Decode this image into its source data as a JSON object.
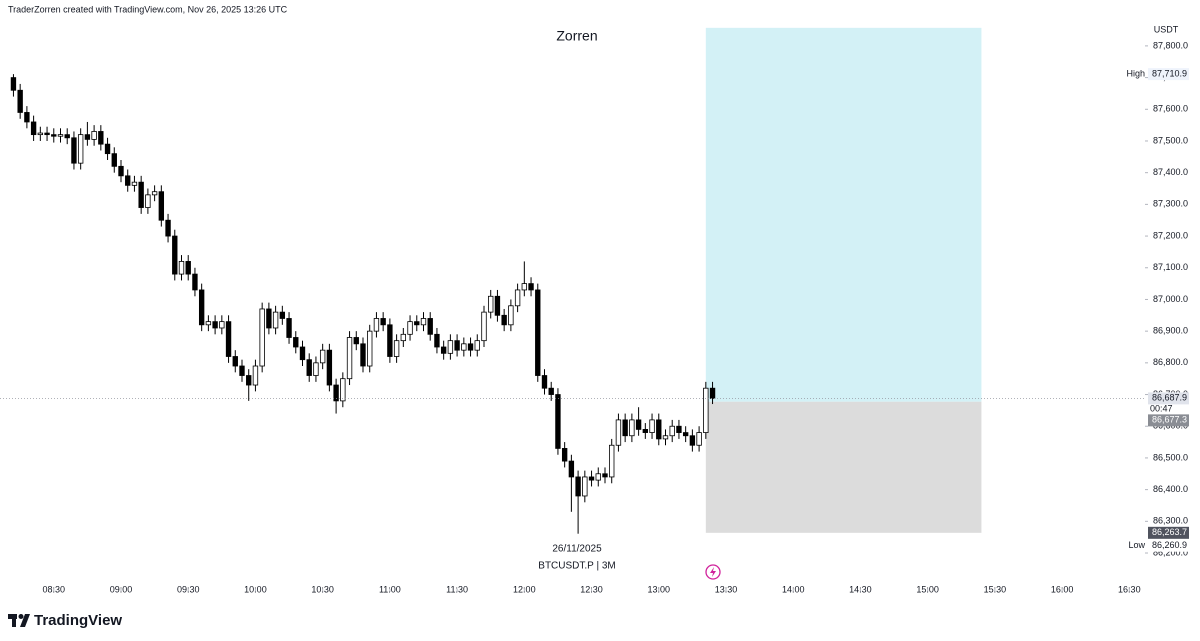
{
  "chart_data": {
    "type": "candlestick",
    "header": "TraderZorren created with TradingView.com, Nov 26, 2025 13:26 UTC",
    "title": "Zorren",
    "date": "26/11/2025",
    "symbol": "BTCUSDT.P | 3M",
    "unit": "USDT",
    "brand": "TradingView",
    "up_color": "#ffffff",
    "down_color": "#000000",
    "grid": false,
    "xlim": [
      486,
      997
    ],
    "ylim": [
      86077,
      87888
    ],
    "xticks": [
      {
        "value": 510,
        "label": "08:30"
      },
      {
        "value": 540,
        "label": "09:00"
      },
      {
        "value": 570,
        "label": "09:30"
      },
      {
        "value": 600,
        "label": "10:00"
      },
      {
        "value": 630,
        "label": "10:30"
      },
      {
        "value": 660,
        "label": "11:00"
      },
      {
        "value": 690,
        "label": "11:30"
      },
      {
        "value": 720,
        "label": "12:00"
      },
      {
        "value": 750,
        "label": "12:30"
      },
      {
        "value": 780,
        "label": "13:00"
      },
      {
        "value": 810,
        "label": "13:30"
      },
      {
        "value": 840,
        "label": "14:00"
      },
      {
        "value": 870,
        "label": "14:30"
      },
      {
        "value": 900,
        "label": "15:00"
      },
      {
        "value": 930,
        "label": "15:30"
      },
      {
        "value": 960,
        "label": "16:00"
      },
      {
        "value": 990,
        "label": "16:30"
      }
    ],
    "yticks": [
      {
        "value": 86200,
        "label": "86,200.0"
      },
      {
        "value": 86300,
        "label": "86,300.0"
      },
      {
        "value": 86400,
        "label": "86,400.0"
      },
      {
        "value": 86500,
        "label": "86,500.0"
      },
      {
        "value": 86600,
        "label": "86,600.0"
      },
      {
        "value": 86700,
        "label": "86,700.0"
      },
      {
        "value": 86800,
        "label": "86,800.0"
      },
      {
        "value": 86900,
        "label": "86,900.0"
      },
      {
        "value": 87000,
        "label": "87,000.0"
      },
      {
        "value": 87100,
        "label": "87,100.0"
      },
      {
        "value": 87200,
        "label": "87,200.0"
      },
      {
        "value": 87300,
        "label": "87,300.0"
      },
      {
        "value": 87400,
        "label": "87,400.0"
      },
      {
        "value": 87500,
        "label": "87,500.0"
      },
      {
        "value": 87600,
        "label": "87,600.0"
      },
      {
        "value": 87700,
        "label": "87,700.0"
      },
      {
        "value": 87800,
        "label": "87,800.0"
      }
    ],
    "x": [
      492,
      495,
      498,
      501,
      504,
      507,
      510,
      513,
      516,
      519,
      522,
      525,
      528,
      531,
      534,
      537,
      540,
      543,
      546,
      549,
      552,
      555,
      558,
      561,
      564,
      567,
      570,
      573,
      576,
      579,
      582,
      585,
      588,
      591,
      594,
      597,
      600,
      603,
      606,
      609,
      612,
      615,
      618,
      621,
      624,
      627,
      630,
      633,
      636,
      639,
      642,
      645,
      648,
      651,
      654,
      657,
      660,
      663,
      666,
      669,
      672,
      675,
      678,
      681,
      684,
      687,
      690,
      693,
      696,
      699,
      702,
      705,
      708,
      711,
      714,
      717,
      720,
      723,
      726,
      729,
      732,
      735,
      738,
      741,
      744,
      747,
      750,
      753,
      756,
      759,
      762,
      765,
      768,
      771,
      774,
      777,
      780,
      783,
      786,
      789,
      792,
      795,
      798,
      801,
      804
    ],
    "open": [
      87700,
      87660,
      87590,
      87560,
      87520,
      87525,
      87520,
      87515,
      87520,
      87510,
      87430,
      87520,
      87505,
      87530,
      87490,
      87460,
      87420,
      87390,
      87360,
      87370,
      87290,
      87330,
      87340,
      87250,
      87200,
      87080,
      87120,
      87080,
      87030,
      86920,
      86930,
      86910,
      86930,
      86820,
      86790,
      86760,
      86730,
      86790,
      86970,
      86910,
      86960,
      86940,
      86880,
      86850,
      86810,
      86760,
      86800,
      86840,
      86730,
      86680,
      86750,
      86880,
      86860,
      86790,
      86900,
      86940,
      86920,
      86820,
      86870,
      86890,
      86930,
      86920,
      86940,
      86890,
      86850,
      86830,
      86870,
      86840,
      86860,
      86840,
      86870,
      86960,
      87010,
      86950,
      86920,
      86980,
      87030,
      87050,
      87030,
      86760,
      86720,
      86700,
      86530,
      86490,
      86440,
      86380,
      86440,
      86430,
      86450,
      86440,
      86540,
      86620,
      86570,
      86620,
      86590,
      86580,
      86620,
      86560,
      86570,
      86600,
      86580,
      86570,
      86540,
      86580,
      86720
    ],
    "high": [
      87710.9,
      87680,
      87610,
      87580,
      87545,
      87545,
      87540,
      87540,
      87540,
      87530,
      87540,
      87560,
      87550,
      87550,
      87510,
      87480,
      87440,
      87410,
      87390,
      87390,
      87350,
      87360,
      87360,
      87270,
      87220,
      87140,
      87140,
      87100,
      87050,
      86950,
      86950,
      86950,
      86950,
      86840,
      86810,
      86780,
      86810,
      86990,
      86990,
      86980,
      86980,
      86960,
      86900,
      86870,
      86830,
      86820,
      86860,
      86860,
      86750,
      86770,
      86900,
      86900,
      86880,
      86920,
      86960,
      86960,
      86940,
      86890,
      86910,
      86950,
      86950,
      86960,
      86960,
      86910,
      86870,
      86890,
      86890,
      86880,
      86880,
      86890,
      86980,
      87030,
      87030,
      86970,
      87000,
      87050,
      87120,
      87070,
      87050,
      86780,
      86740,
      86720,
      86550,
      86510,
      86460,
      86460,
      86460,
      86470,
      86470,
      86560,
      86640,
      86640,
      86640,
      86660,
      86610,
      86640,
      86640,
      86590,
      86620,
      86620,
      86600,
      86590,
      86600,
      86740,
      86740
    ],
    "low": [
      87640,
      87570,
      87540,
      87500,
      87500,
      87500,
      87495,
      87495,
      87490,
      87410,
      87410,
      87485,
      87485,
      87470,
      87440,
      87400,
      87370,
      87340,
      87340,
      87270,
      87270,
      87310,
      87230,
      87180,
      87060,
      87060,
      87060,
      87010,
      86900,
      86900,
      86890,
      86890,
      86800,
      86770,
      86740,
      86680,
      86710,
      86770,
      86890,
      86890,
      86920,
      86860,
      86830,
      86790,
      86740,
      86740,
      86780,
      86710,
      86640,
      86660,
      86730,
      86840,
      86770,
      86770,
      86880,
      86900,
      86800,
      86800,
      86850,
      86870,
      86900,
      86900,
      86870,
      86830,
      86810,
      86810,
      86820,
      86820,
      86820,
      86820,
      86850,
      86940,
      86930,
      86900,
      86900,
      86960,
      87010,
      87010,
      86740,
      86700,
      86680,
      86510,
      86470,
      86330,
      86260.9,
      86360,
      86410,
      86410,
      86420,
      86420,
      86520,
      86550,
      86550,
      86570,
      86560,
      86560,
      86540,
      86540,
      86550,
      86560,
      86550,
      86520,
      86520,
      86560,
      86670
    ],
    "close": [
      87660,
      87590,
      87560,
      87520,
      87525,
      87520,
      87515,
      87520,
      87510,
      87430,
      87520,
      87505,
      87530,
      87490,
      87460,
      87420,
      87390,
      87360,
      87370,
      87290,
      87330,
      87340,
      87250,
      87200,
      87080,
      87120,
      87080,
      87030,
      86920,
      86930,
      86910,
      86930,
      86820,
      86790,
      86760,
      86730,
      86790,
      86970,
      86910,
      86960,
      86940,
      86880,
      86850,
      86810,
      86760,
      86800,
      86840,
      86730,
      86680,
      86750,
      86880,
      86860,
      86790,
      86900,
      86940,
      86920,
      86820,
      86870,
      86890,
      86930,
      86920,
      86940,
      86890,
      86850,
      86830,
      86870,
      86840,
      86860,
      86840,
      86870,
      86960,
      87010,
      86950,
      86920,
      86980,
      87030,
      87050,
      87030,
      86760,
      86720,
      86700,
      86530,
      86490,
      86440,
      86380,
      86440,
      86430,
      86450,
      86440,
      86540,
      86620,
      86570,
      86620,
      86590,
      86580,
      86620,
      86560,
      86570,
      86600,
      86580,
      86570,
      86540,
      86580,
      86720,
      86687.9
    ],
    "price_labels": [
      {
        "name": "High",
        "value": 87710.9,
        "label": "87,710.9"
      },
      {
        "name": "Low",
        "value": 86260.9,
        "label": "86,260.9"
      }
    ],
    "last_price": {
      "value": 86687.9,
      "label": "86,687.9",
      "countdown": "00:47"
    },
    "position": {
      "start": 801,
      "end": 924,
      "target": 87857,
      "entry": {
        "value": 86677.3,
        "label": "86,677.3"
      },
      "stop": {
        "value": 86263.7,
        "label": "86,263.7"
      },
      "profit_color": "#d3f1f6",
      "loss_color": "#dcdcdc"
    }
  }
}
